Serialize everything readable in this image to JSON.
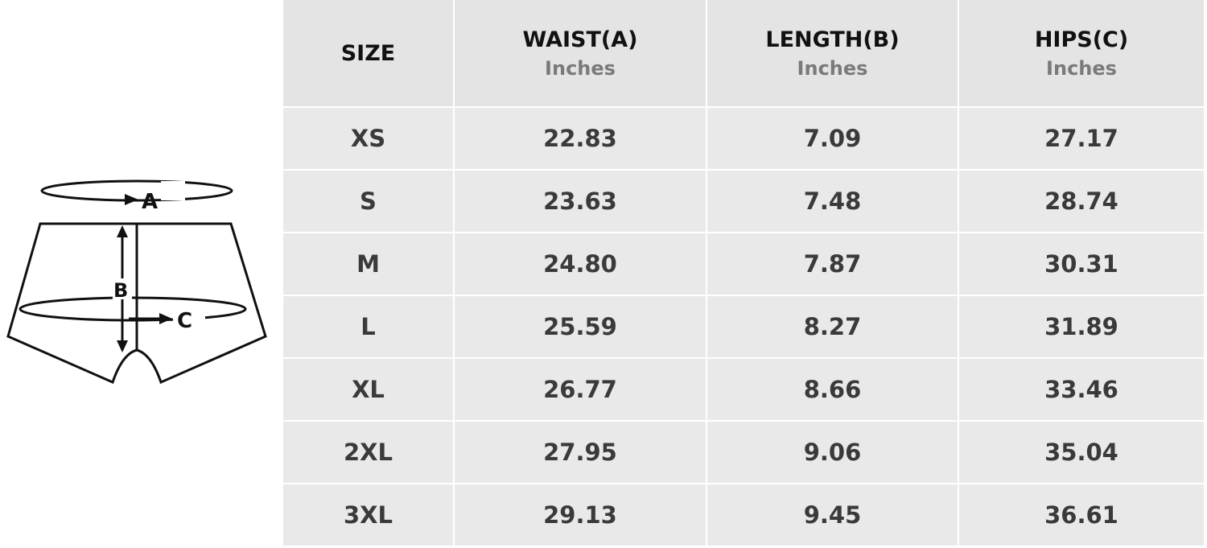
{
  "diagram": {
    "labels": {
      "a": "A",
      "b": "B",
      "c": "C"
    }
  },
  "table": {
    "headers": [
      {
        "title": "SIZE",
        "unit": ""
      },
      {
        "title": "WAIST(A)",
        "unit": "Inches"
      },
      {
        "title": "LENGTH(B)",
        "unit": "Inches"
      },
      {
        "title": "HIPS(C)",
        "unit": "Inches"
      }
    ],
    "rows": [
      [
        "XS",
        "22.83",
        "7.09",
        "27.17"
      ],
      [
        "S",
        "23.63",
        "7.48",
        "28.74"
      ],
      [
        "M",
        "24.80",
        "7.87",
        "30.31"
      ],
      [
        "L",
        "25.59",
        "8.27",
        "31.89"
      ],
      [
        "XL",
        "26.77",
        "8.66",
        "33.46"
      ],
      [
        "2XL",
        "27.95",
        "9.06",
        "35.04"
      ],
      [
        "3XL",
        "29.13",
        "9.45",
        "36.61"
      ]
    ]
  }
}
